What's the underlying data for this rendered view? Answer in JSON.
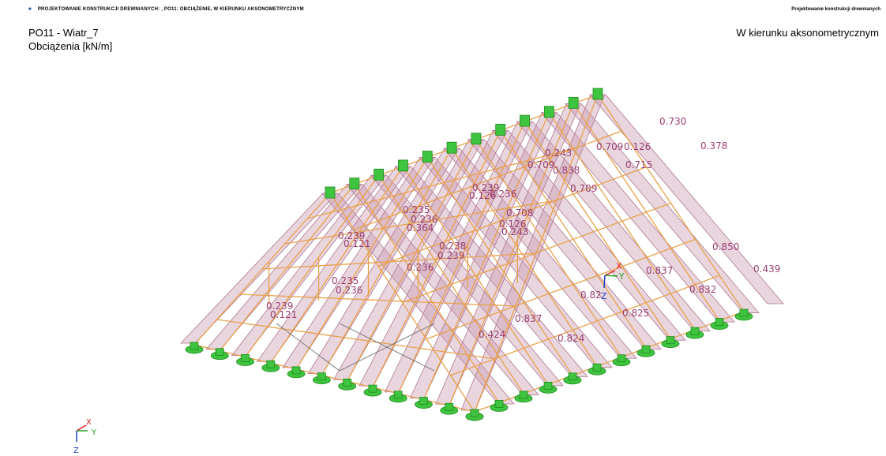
{
  "header": {
    "left_text": "PROJEKTOWANIE KONSTRUKCJI DREWNIANYCH: , PO11: OBCIĄŻENIE, W KIERUNKU AKSONOMETRYCZNYM",
    "right_text": "Projektowanie konstrukcji drewnianych"
  },
  "title": {
    "line1": "PO11 - Wiatr_7",
    "line2": "Obciążenia [kN/m]"
  },
  "view_label": "W kierunku aksonometrycznym",
  "colors": {
    "member": "#e8a04a",
    "load_fill": "#c89bb0",
    "load_label": "#9b3f73",
    "support": "#3fc43f",
    "axis_x": "#e02020",
    "axis_y": "#20a020",
    "axis_z": "#2040c0"
  },
  "load_labels": [
    "0.730",
    "0.378",
    "0.709",
    "0.126",
    "0.715",
    "0.243",
    "0.709",
    "0.838",
    "0.709",
    "0.239",
    "0.126",
    "0.236",
    "0.708",
    "0.126",
    "0.243",
    "0.235",
    "0.236",
    "0.364",
    "0.239",
    "0.121",
    "0.238",
    "0.239",
    "0.236",
    "0.850",
    "0.439",
    "0.837",
    "0.832",
    "0.82",
    "0.235",
    "0.236",
    "0.239",
    "0.121",
    "0.837",
    "0.825",
    "0.424",
    "0.824"
  ],
  "axes": {
    "x_label": "X",
    "y_label": "Y",
    "z_label": "Z"
  }
}
